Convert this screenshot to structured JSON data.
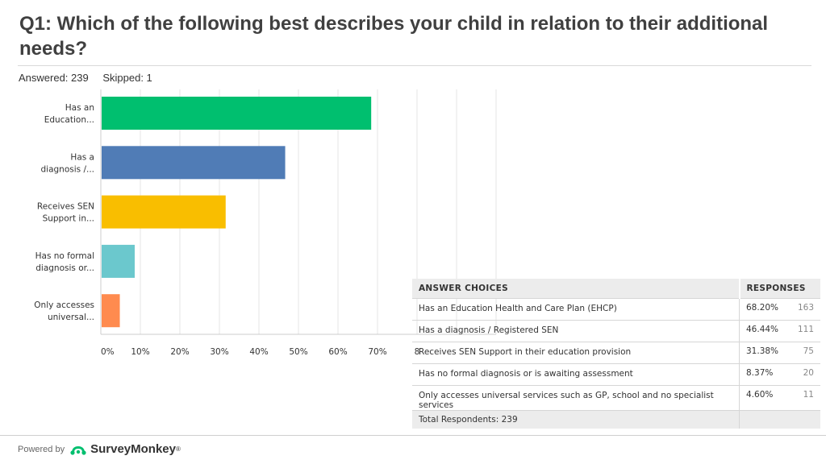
{
  "header": {
    "title": "Q1: Which of the following best describes your child in relation to their additional needs?",
    "answered": "Answered: 239",
    "skipped": "Skipped: 1"
  },
  "chart_data": {
    "type": "bar",
    "orientation": "horizontal",
    "categories": [
      "Has an Education...",
      "Has a diagnosis /...",
      "Receives SEN Support in...",
      "Has no formal diagnosis or...",
      "Only accesses universal..."
    ],
    "category_lines": [
      [
        "Has an",
        "Education..."
      ],
      [
        "Has a",
        "diagnosis /..."
      ],
      [
        "Receives SEN",
        "Support in..."
      ],
      [
        "Has no formal",
        "diagnosis or..."
      ],
      [
        "Only accesses",
        "universal..."
      ]
    ],
    "values": [
      68.2,
      46.44,
      31.38,
      8.37,
      4.6
    ],
    "colors": [
      "#00bf6f",
      "#507cb6",
      "#f9be00",
      "#6bc8cd",
      "#ff8b4f"
    ],
    "xlim": [
      0,
      100
    ],
    "x_ticks": [
      "0%",
      "10%",
      "20%",
      "30%",
      "40%",
      "50%",
      "60%",
      "70%",
      "8"
    ],
    "grid": true
  },
  "table": {
    "col_choices": "ANSWER CHOICES",
    "col_responses": "RESPONSES",
    "rows": [
      {
        "choice": "Has an Education Health and Care Plan (EHCP)",
        "pct": "68.20%",
        "count": "163"
      },
      {
        "choice": "Has a diagnosis / Registered SEN",
        "pct": "46.44%",
        "count": "111"
      },
      {
        "choice": "Receives SEN Support in their education provision",
        "pct": "31.38%",
        "count": "75"
      },
      {
        "choice": "Has no formal diagnosis or is awaiting assessment",
        "pct": "8.37%",
        "count": "20"
      },
      {
        "choice": "Only accesses universal services such as GP, school and no specialist services",
        "pct": "4.60%",
        "count": "11"
      }
    ],
    "total": "Total Respondents: 239"
  },
  "footer": {
    "powered_by": "Powered by",
    "brand": "SurveyMonkey",
    "brand_mark": "®",
    "brand_color": "#00bf6f"
  }
}
